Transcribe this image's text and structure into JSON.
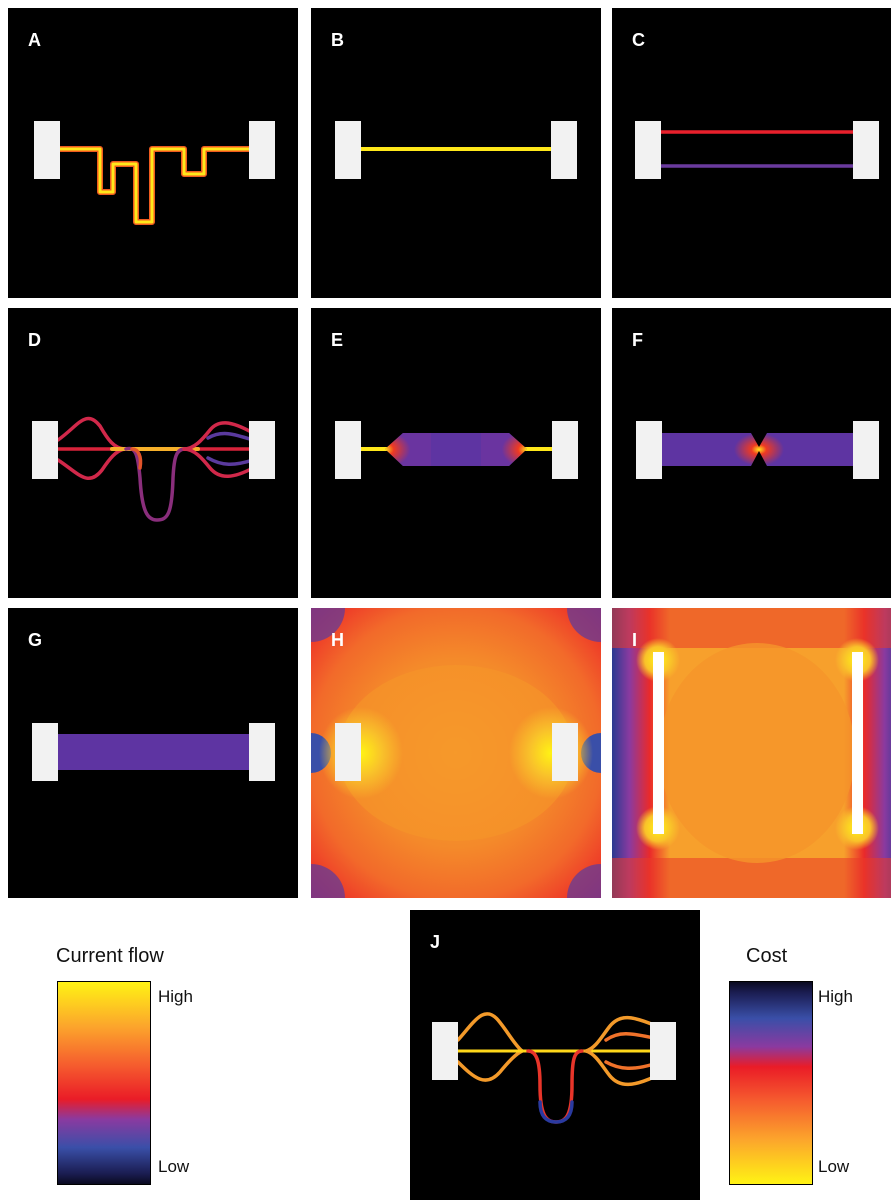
{
  "panels": [
    {
      "id": "a",
      "label": "A"
    },
    {
      "id": "b",
      "label": "B"
    },
    {
      "id": "c",
      "label": "C"
    },
    {
      "id": "d",
      "label": "D"
    },
    {
      "id": "e",
      "label": "E"
    },
    {
      "id": "f",
      "label": "F"
    },
    {
      "id": "g",
      "label": "G"
    },
    {
      "id": "h",
      "label": "H"
    },
    {
      "id": "i",
      "label": "I"
    },
    {
      "id": "j",
      "label": "J"
    }
  ],
  "current_flow_legend": {
    "title": "Current flow",
    "high_label": "High",
    "low_label": "Low",
    "colors_top_to_bottom": [
      "#fff314",
      "#fca52c",
      "#f5592e",
      "#ea1c27",
      "#8a3aa0",
      "#3a4fa8",
      "#1a1c50",
      "#0a0a20"
    ]
  },
  "cost_legend": {
    "title": "Cost",
    "high_label": "High",
    "low_label": "Low",
    "colors_top_to_bottom": [
      "#0a0a20",
      "#1a1c50",
      "#3a4fa8",
      "#8a3aa0",
      "#ea1c27",
      "#f5592e",
      "#fca52c",
      "#fff314"
    ]
  }
}
